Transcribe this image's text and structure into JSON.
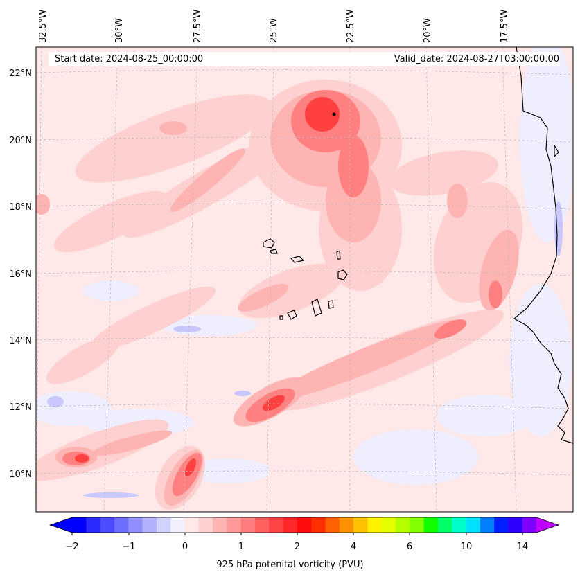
{
  "header": {
    "start_date": "Start date: 2024-08-25_00:00:00",
    "valid_date": "Valid_date: 2024-08-27T03:00:00.00"
  },
  "map": {
    "longitude_labels": [
      "32.5°W",
      "30°W",
      "27.5°W",
      "25°W",
      "22.5°W",
      "20°W",
      "17.5°W"
    ],
    "latitude_labels": [
      "22°N",
      "20°N",
      "18°N",
      "16°N",
      "14°N",
      "12°N",
      "10°N"
    ],
    "gridlines": "dashed",
    "coastline_color": "#000000"
  },
  "colorbar": {
    "title": "925 hPa potenital vorticity (PVU)",
    "tick_labels": [
      "−2",
      "−1",
      "0",
      "1",
      "2",
      "4",
      "6",
      "10",
      "14"
    ],
    "extend": "both",
    "colors": [
      "#0000ff",
      "#2a2aff",
      "#4b4bff",
      "#6d6dff",
      "#8f8fff",
      "#b0b0ff",
      "#d2d2ff",
      "#f0f0ff",
      "#ffe8e8",
      "#ffd0d0",
      "#ffb4b4",
      "#ff9898",
      "#ff7c7c",
      "#ff6060",
      "#ff4444",
      "#ff2828",
      "#ff0c0c",
      "#ff3000",
      "#ff6000",
      "#ff9000",
      "#ffc000",
      "#fff000",
      "#e6ff00",
      "#b4ff00",
      "#82ff00",
      "#10ff00",
      "#00ff64",
      "#00ffc8",
      "#00e0ff",
      "#0080ff",
      "#0020ff",
      "#3000ff",
      "#8000ff"
    ],
    "under_color": "#0000ff",
    "over_color": "#c000ff"
  }
}
